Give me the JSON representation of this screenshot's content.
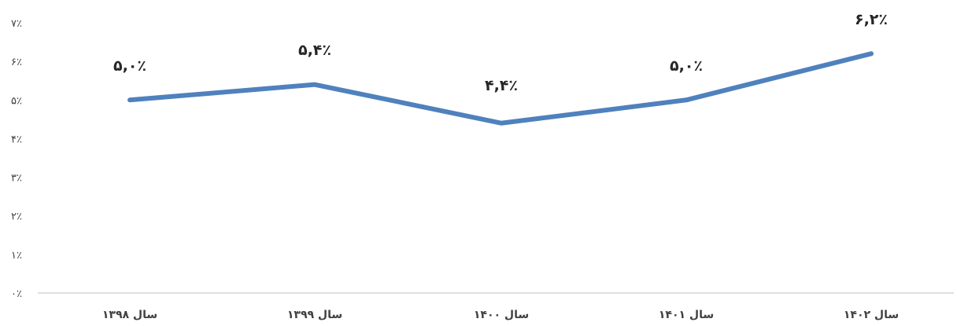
{
  "chart_data": {
    "type": "line",
    "title": "",
    "xlabel": "",
    "ylabel": "",
    "categories": [
      "سال ۱۳۹۸",
      "سال ۱۳۹۹",
      "سال ۱۴۰۰",
      "سال ۱۴۰۱",
      "سال ۱۴۰۲"
    ],
    "values": [
      5.0,
      5.4,
      4.4,
      5.0,
      6.2
    ],
    "data_labels": [
      "۵,۰٪",
      "۵,۴٪",
      "۴,۴٪",
      "۵,۰٪",
      "۶,۲٪"
    ],
    "y_ticks": [
      0,
      1,
      2,
      3,
      4,
      5,
      6,
      7
    ],
    "y_tick_labels": [
      "۰٪",
      "۱٪",
      "۲٪",
      "۳٪",
      "۴٪",
      "۵٪",
      "۶٪",
      "۷٪"
    ],
    "ylim": [
      0,
      7
    ],
    "grid": false,
    "legend": "none",
    "colors": {
      "line": "#4f81bd",
      "axis": "#bfbfbf"
    }
  }
}
